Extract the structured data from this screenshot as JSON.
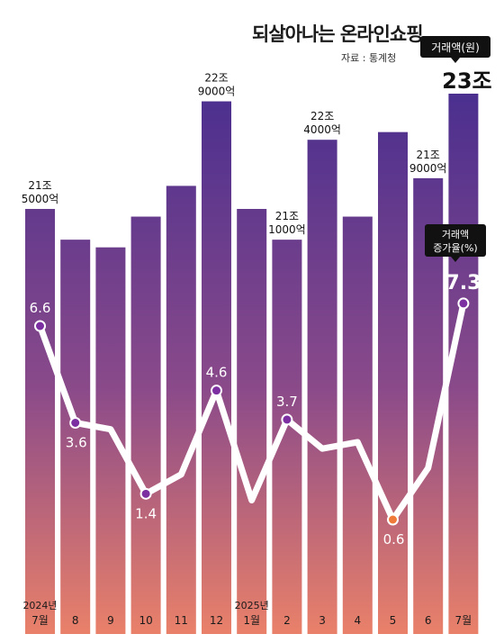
{
  "title": "되살아나는 온라인쇼핑",
  "source": "자료 : 통계청",
  "chart_data": {
    "type": "bar",
    "categories": [
      "2024년 7월",
      "8",
      "9",
      "10",
      "11",
      "12",
      "2025년 1월",
      "2",
      "3",
      "4",
      "5",
      "6",
      "7월"
    ],
    "axis_labels": [
      [
        "2024년",
        "7월"
      ],
      [
        "8"
      ],
      [
        "9"
      ],
      [
        "10"
      ],
      [
        "11"
      ],
      [
        "12"
      ],
      [
        "2025년",
        "1월"
      ],
      [
        "2"
      ],
      [
        "3"
      ],
      [
        "4"
      ],
      [
        "5"
      ],
      [
        "6"
      ],
      [
        "7월"
      ]
    ],
    "series": [
      {
        "name": "거래액(원)",
        "type": "bar",
        "unit": "조 원",
        "values": [
          21.5,
          21.1,
          21.0,
          21.4,
          21.8,
          22.9,
          21.5,
          21.1,
          22.4,
          21.4,
          22.5,
          21.9,
          23.0
        ]
      },
      {
        "name": "거래액 증가율(%)",
        "type": "line",
        "unit": "%",
        "values": [
          6.6,
          3.6,
          3.4,
          1.4,
          2.0,
          4.6,
          1.2,
          3.7,
          2.8,
          3.0,
          0.6,
          2.2,
          7.3
        ]
      }
    ],
    "bar_labels": [
      {
        "index": 0,
        "lines": [
          "21조",
          "5000억"
        ]
      },
      {
        "index": 5,
        "lines": [
          "22조",
          "9000억"
        ]
      },
      {
        "index": 7,
        "lines": [
          "21조",
          "1000억"
        ]
      },
      {
        "index": 8,
        "lines": [
          "22조",
          "4000억"
        ]
      },
      {
        "index": 11,
        "lines": [
          "21조",
          "9000억"
        ]
      },
      {
        "index": 12,
        "lines": [
          "23조"
        ]
      }
    ],
    "line_labels": [
      {
        "index": 0,
        "text": "6.6"
      },
      {
        "index": 1,
        "text": "3.6"
      },
      {
        "index": 3,
        "text": "1.4"
      },
      {
        "index": 5,
        "text": "4.6"
      },
      {
        "index": 7,
        "text": "3.7"
      },
      {
        "index": 10,
        "text": "0.6"
      },
      {
        "index": 12,
        "text": "7.3"
      }
    ],
    "callouts": {
      "amount": "거래액(원)",
      "growth": [
        "거래액",
        "증가율(%)"
      ]
    },
    "colors": {
      "bar_top": "#4a2f8f",
      "bar_mid": "#8a4a8a",
      "bar_bottom": "#e8806a",
      "line": "#ffffff",
      "marker_default": "#7b2fa0",
      "marker_min": "#f07a3a",
      "callout_bg": "#111111"
    }
  }
}
